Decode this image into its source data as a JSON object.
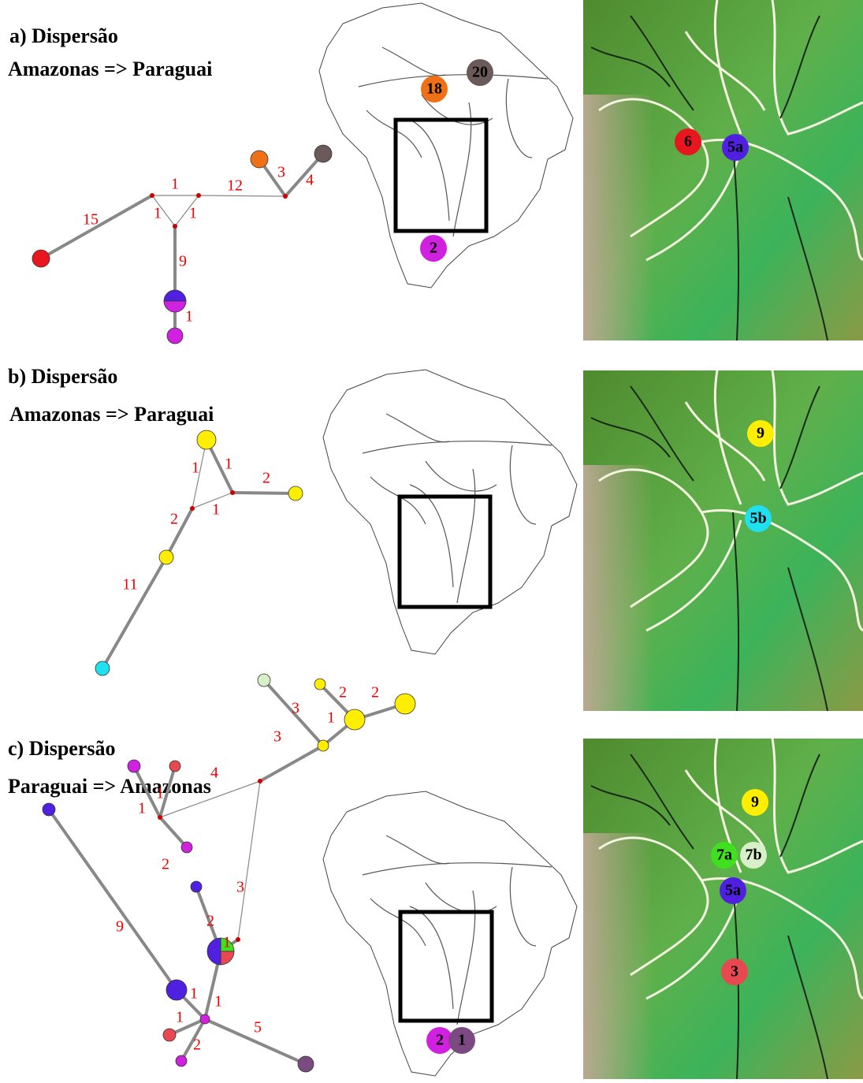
{
  "panels": [
    {
      "title": "a) Dispersão",
      "route": "Amazonas => Paraguai",
      "edge_labels": [
        15,
        1,
        1,
        1,
        12,
        3,
        4,
        9,
        1
      ],
      "map_markers": [
        "18",
        "20",
        "2"
      ],
      "relief_markers": [
        "6",
        "5a"
      ]
    },
    {
      "title": "b) Dispersão",
      "route": "Amazonas => Paraguai",
      "edge_labels": [
        1,
        1,
        2,
        1,
        2,
        11
      ],
      "map_markers": [],
      "relief_markers": [
        "9",
        "5b"
      ]
    },
    {
      "title": "c) Dispersão",
      "route": "Paraguai => Amazonas",
      "edge_labels": [
        2,
        2,
        3,
        1,
        3,
        4,
        1,
        1,
        2,
        3,
        9,
        2,
        1,
        1,
        1,
        1,
        2,
        5
      ],
      "map_markers": [
        "2",
        "1"
      ],
      "relief_markers": [
        "9",
        "7a",
        "7b",
        "5a",
        "3"
      ]
    }
  ]
}
